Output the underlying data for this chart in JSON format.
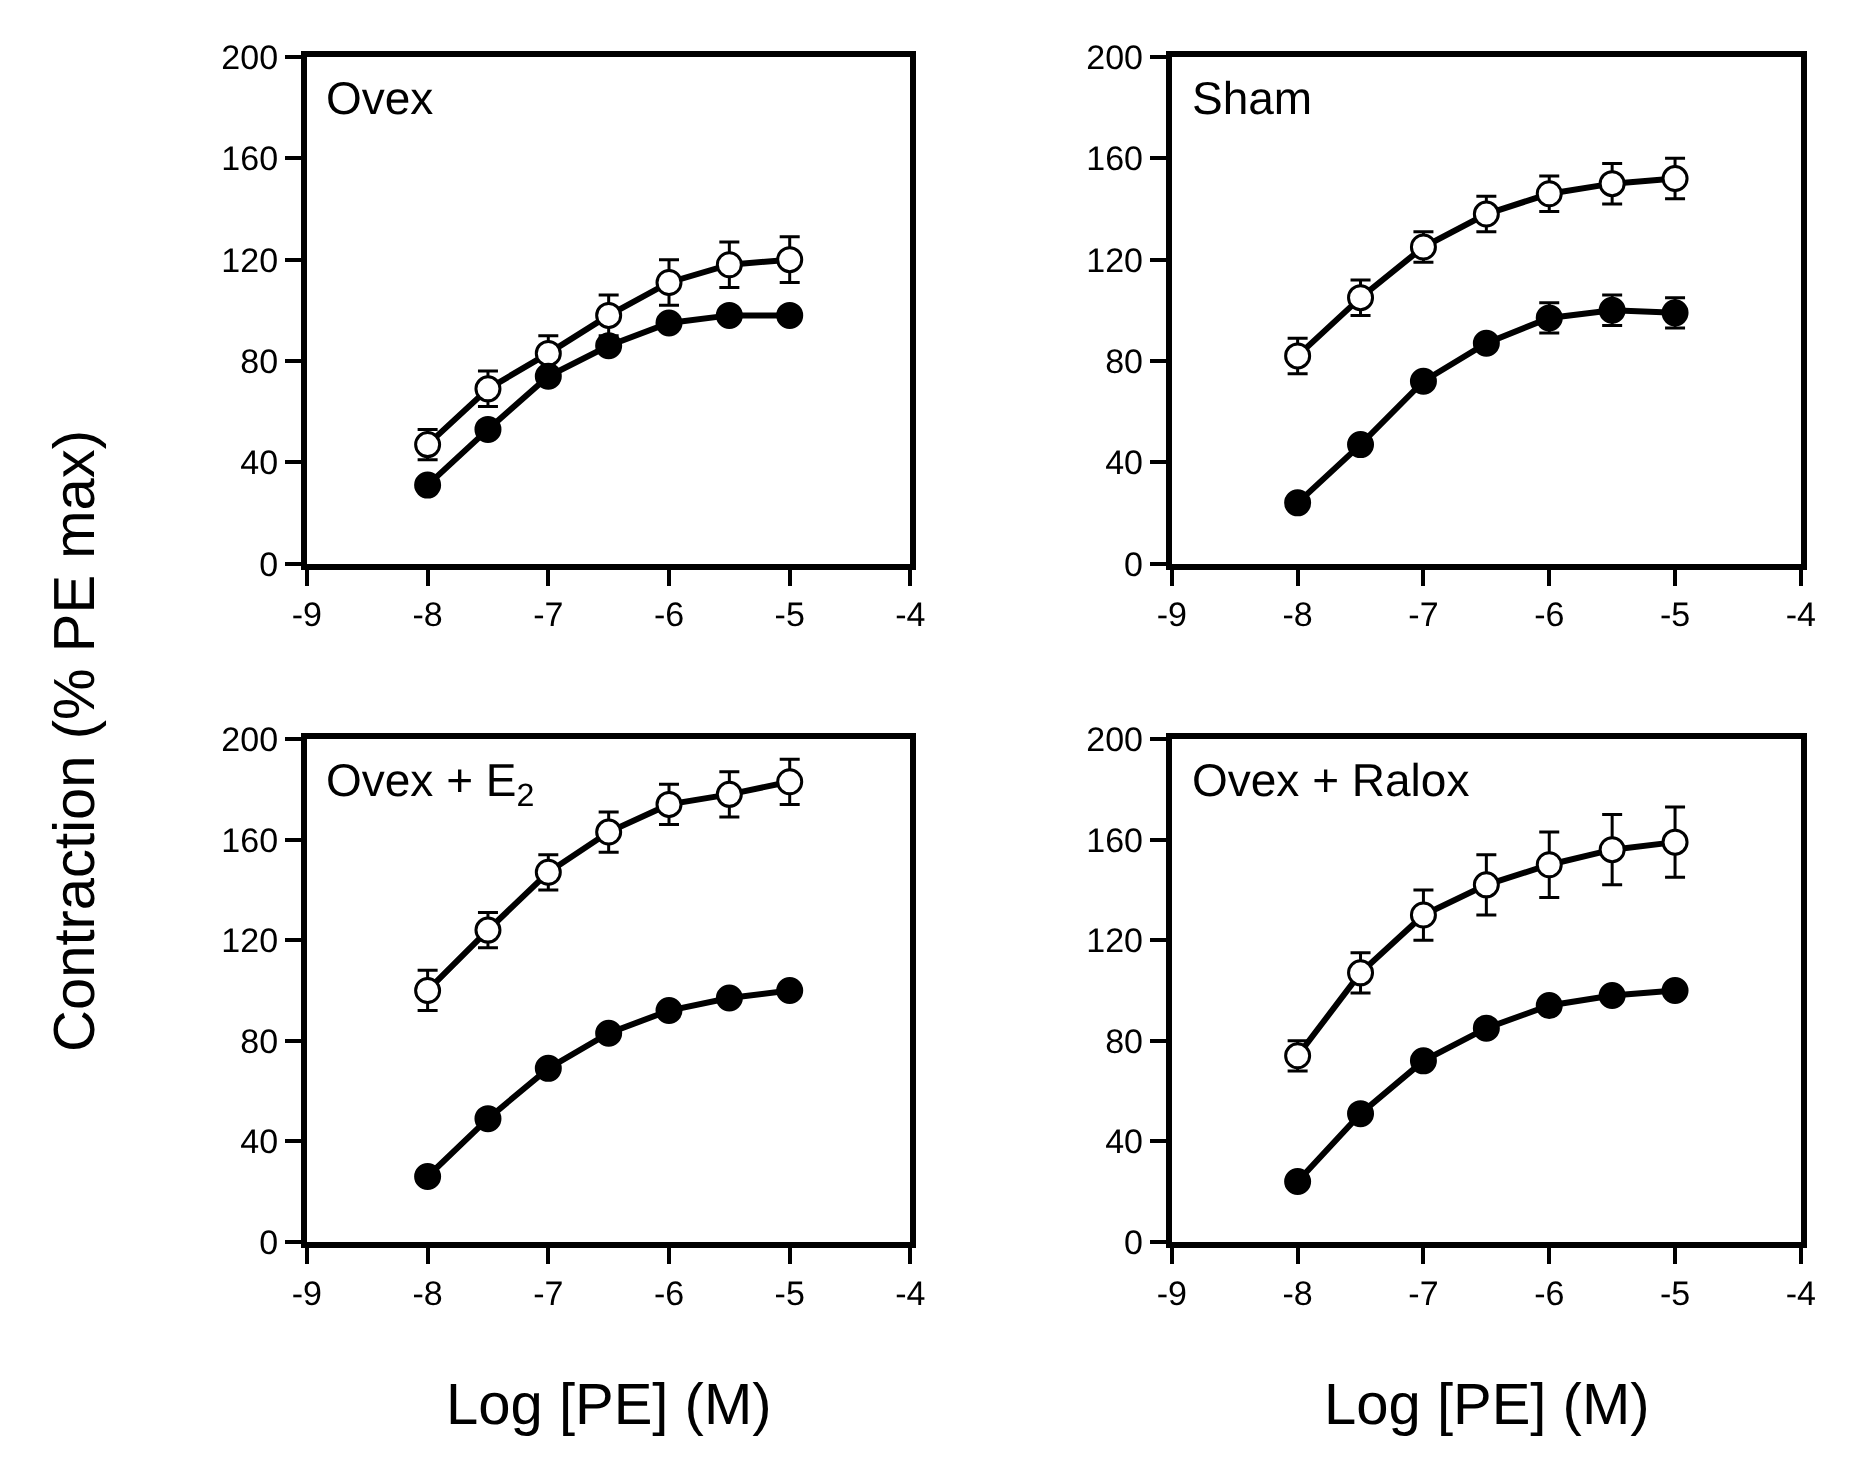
{
  "chart_data": [
    {
      "type": "line",
      "title": "Ovex",
      "ylabel": "Contraction (% PE max)",
      "x": [
        -8,
        -7.5,
        -7,
        -6.5,
        -6,
        -5.5,
        -5
      ],
      "xlim": [
        -9,
        -4
      ],
      "xticks": [
        -9,
        -8,
        -7,
        -6,
        -5,
        -4
      ],
      "ylim": [
        0,
        200
      ],
      "yticks": [
        0,
        40,
        80,
        120,
        160,
        200
      ],
      "marker": "circle",
      "line_style": "solid",
      "series": [
        {
          "color": "#ffffff",
          "values": [
            47,
            69,
            83,
            98,
            111,
            118,
            120
          ],
          "errors": [
            6,
            7,
            7,
            8,
            9,
            9,
            9
          ]
        },
        {
          "color": "#000000",
          "values": [
            31,
            53,
            74,
            86,
            95,
            98,
            98
          ]
        }
      ]
    },
    {
      "type": "line",
      "title": "Sham",
      "x": [
        -8,
        -7.5,
        -7,
        -6.5,
        -6,
        -5.5,
        -5
      ],
      "xlim": [
        -9,
        -4
      ],
      "xticks": [
        -9,
        -8,
        -7,
        -6,
        -5,
        -4
      ],
      "ylim": [
        0,
        200
      ],
      "yticks": [
        0,
        40,
        80,
        120,
        160,
        200
      ],
      "marker": "circle",
      "line_style": "solid",
      "series": [
        {
          "color": "#ffffff",
          "values": [
            82,
            105,
            125,
            138,
            146,
            150,
            152
          ],
          "errors": [
            7,
            7,
            6,
            7,
            7,
            8,
            8
          ]
        },
        {
          "color": "#000000",
          "values": [
            24,
            47,
            72,
            87,
            97,
            100,
            99
          ],
          "errors": [
            null,
            null,
            null,
            null,
            6,
            6,
            6
          ]
        }
      ]
    },
    {
      "type": "line",
      "title": "Ovex + E$_{2}$",
      "xlabel": "Log [PE] (M)",
      "x": [
        -8,
        -7.5,
        -7,
        -6.5,
        -6,
        -5.5,
        -5
      ],
      "xlim": [
        -9,
        -4
      ],
      "xticks": [
        -9,
        -8,
        -7,
        -6,
        -5,
        -4
      ],
      "ylim": [
        0,
        200
      ],
      "yticks": [
        0,
        40,
        80,
        120,
        160,
        200
      ],
      "marker": "circle",
      "line_style": "solid",
      "series": [
        {
          "color": "#ffffff",
          "values": [
            100,
            124,
            147,
            163,
            174,
            178,
            183
          ],
          "errors": [
            8,
            7,
            7,
            8,
            8,
            9,
            9
          ]
        },
        {
          "color": "#000000",
          "values": [
            26,
            49,
            69,
            83,
            92,
            97,
            100
          ]
        }
      ]
    },
    {
      "type": "line",
      "title": "Ovex + Ralox",
      "xlabel": "Log [PE] (M)",
      "x": [
        -8,
        -7.5,
        -7,
        -6.5,
        -6,
        -5.5,
        -5
      ],
      "xlim": [
        -9,
        -4
      ],
      "xticks": [
        -9,
        -8,
        -7,
        -6,
        -5,
        -4
      ],
      "ylim": [
        0,
        200
      ],
      "yticks": [
        0,
        40,
        80,
        120,
        160,
        200
      ],
      "marker": "circle",
      "line_style": "solid",
      "series": [
        {
          "color": "#ffffff",
          "values": [
            74,
            107,
            130,
            142,
            150,
            156,
            159
          ],
          "errors": [
            6,
            8,
            10,
            12,
            13,
            14,
            14
          ]
        },
        {
          "color": "#000000",
          "values": [
            24,
            51,
            72,
            85,
            94,
            98,
            100
          ]
        }
      ]
    }
  ]
}
